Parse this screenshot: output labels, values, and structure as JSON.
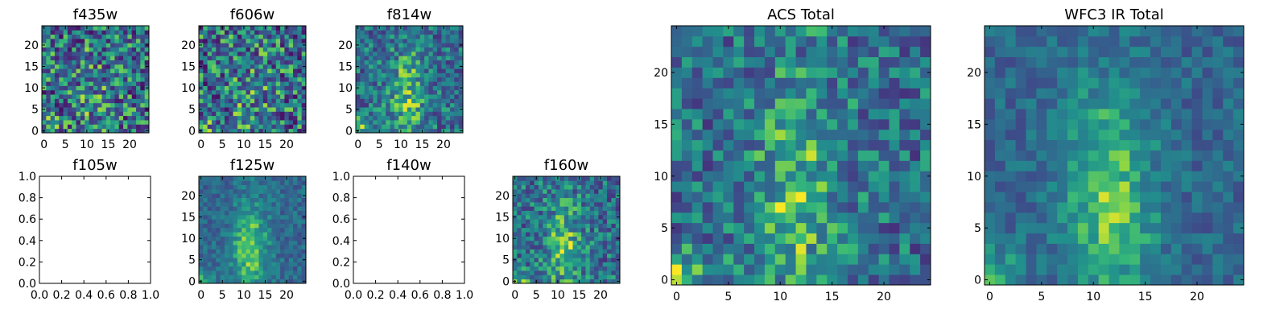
{
  "chart_data": [
    {
      "type": "heatmap",
      "title": "f435w",
      "xticks": [
        "0",
        "5",
        "10",
        "15",
        "20"
      ],
      "yticks": [
        "0",
        "5",
        "10",
        "15",
        "20"
      ],
      "xlim": [
        -0.5,
        24.5
      ],
      "ylim": [
        -0.5,
        24.5
      ],
      "grid_size": 25,
      "pattern": "noisy",
      "colormap": "viridis",
      "has_data": true
    },
    {
      "type": "heatmap",
      "title": "f606w",
      "xticks": [
        "0",
        "5",
        "10",
        "15",
        "20"
      ],
      "yticks": [
        "0",
        "5",
        "10",
        "15",
        "20"
      ],
      "xlim": [
        -0.5,
        24.5
      ],
      "ylim": [
        -0.5,
        24.5
      ],
      "grid_size": 25,
      "pattern": "noisy",
      "colormap": "viridis",
      "has_data": true
    },
    {
      "type": "heatmap",
      "title": "f814w",
      "xticks": [
        "0",
        "5",
        "10",
        "15",
        "20"
      ],
      "yticks": [
        "0",
        "5",
        "10",
        "15",
        "20"
      ],
      "xlim": [
        -0.5,
        24.5
      ],
      "ylim": [
        -0.5,
        24.5
      ],
      "grid_size": 25,
      "pattern": "structured",
      "colormap": "viridis",
      "has_data": true
    },
    {
      "type": "heatmap",
      "title": "f105w",
      "xticks": [
        "0.0",
        "0.2",
        "0.4",
        "0.6",
        "0.8",
        "1.0"
      ],
      "yticks": [
        "0.0",
        "0.2",
        "0.4",
        "0.6",
        "0.8",
        "1.0"
      ],
      "xlim": [
        0,
        1
      ],
      "ylim": [
        0,
        1
      ],
      "has_data": false
    },
    {
      "type": "heatmap",
      "title": "f125w",
      "xticks": [
        "0",
        "5",
        "10",
        "15",
        "20"
      ],
      "yticks": [
        "0",
        "5",
        "10",
        "15",
        "20"
      ],
      "xlim": [
        -0.5,
        24.5
      ],
      "ylim": [
        -0.5,
        24.5
      ],
      "grid_size": 25,
      "pattern": "smooth",
      "colormap": "viridis",
      "has_data": true
    },
    {
      "type": "heatmap",
      "title": "f140w",
      "xticks": [
        "0.0",
        "0.2",
        "0.4",
        "0.6",
        "0.8",
        "1.0"
      ],
      "yticks": [
        "0.0",
        "0.2",
        "0.4",
        "0.6",
        "0.8",
        "1.0"
      ],
      "xlim": [
        0,
        1
      ],
      "ylim": [
        0,
        1
      ],
      "has_data": false
    },
    {
      "type": "heatmap",
      "title": "f160w",
      "xticks": [
        "0",
        "5",
        "10",
        "15",
        "20"
      ],
      "yticks": [
        "0",
        "5",
        "10",
        "15",
        "20"
      ],
      "xlim": [
        -0.5,
        24.5
      ],
      "ylim": [
        -0.5,
        24.5
      ],
      "grid_size": 25,
      "pattern": "structured",
      "colormap": "viridis",
      "has_data": true
    },
    {
      "type": "heatmap",
      "title": "ACS Total",
      "xticks": [
        "0",
        "5",
        "10",
        "15",
        "20"
      ],
      "yticks": [
        "0",
        "5",
        "10",
        "15",
        "20"
      ],
      "xlim": [
        -0.5,
        24.5
      ],
      "ylim": [
        -0.5,
        24.5
      ],
      "grid_size": 25,
      "pattern": "structured",
      "colormap": "viridis",
      "has_data": true
    },
    {
      "type": "heatmap",
      "title": "WFC3 IR Total",
      "xticks": [
        "0",
        "5",
        "10",
        "15",
        "20"
      ],
      "yticks": [
        "0",
        "5",
        "10",
        "15",
        "20"
      ],
      "xlim": [
        -0.5,
        24.5
      ],
      "ylim": [
        -0.5,
        24.5
      ],
      "grid_size": 25,
      "pattern": "smooth",
      "colormap": "viridis",
      "has_data": true
    }
  ]
}
